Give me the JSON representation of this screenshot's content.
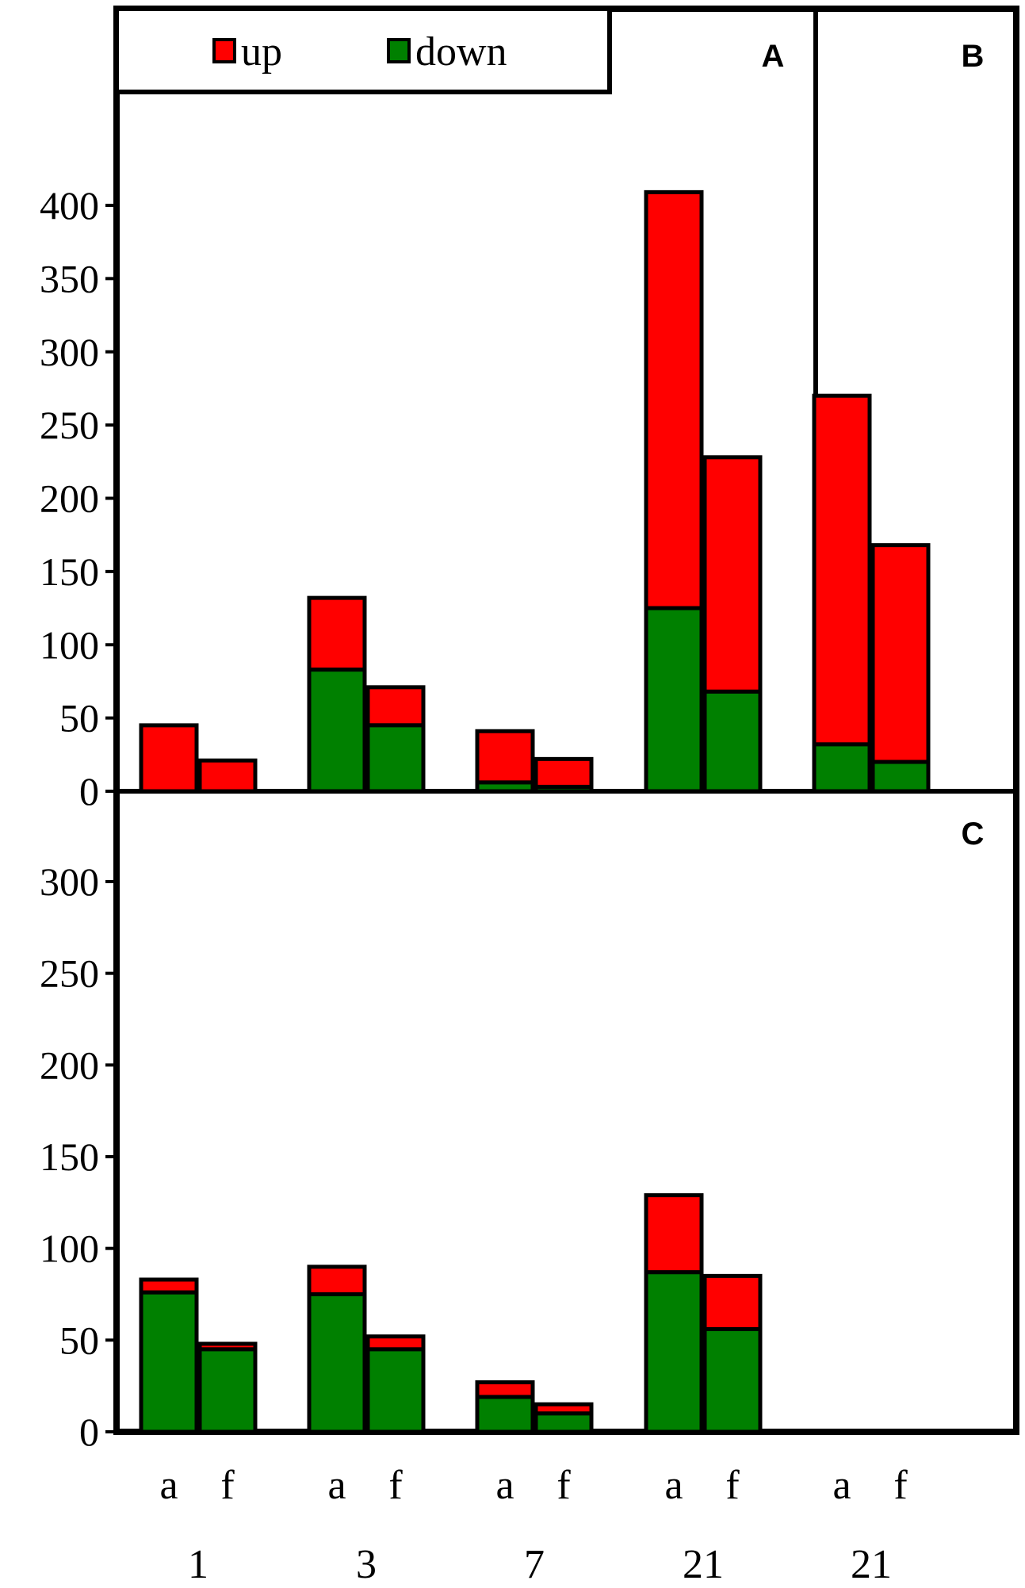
{
  "chart_data": {
    "type": "bar",
    "stacked": true,
    "colors": {
      "up": "#ff0000",
      "down": "#008000",
      "stroke": "#000000"
    },
    "legend": [
      {
        "key": "up",
        "label": "up"
      },
      {
        "key": "down",
        "label": "down"
      }
    ],
    "groups": [
      {
        "label": "1",
        "bars": [
          "a",
          "f"
        ]
      },
      {
        "label": "3",
        "bars": [
          "a",
          "f"
        ]
      },
      {
        "label": "7",
        "bars": [
          "a",
          "f"
        ]
      },
      {
        "label": "21",
        "bars": [
          "a",
          "f"
        ]
      },
      {
        "label": "21",
        "bars": [
          "a",
          "f"
        ]
      }
    ],
    "panels": [
      {
        "label": "A",
        "ylim": [
          0,
          400
        ],
        "yticks": [
          "0",
          "50",
          "100",
          "150",
          "200",
          "250",
          "300",
          "350",
          "400"
        ],
        "bars": [
          {
            "group": 0,
            "bar": "a",
            "down": 0,
            "up": 45
          },
          {
            "group": 0,
            "bar": "f",
            "down": 0,
            "up": 21
          },
          {
            "group": 1,
            "bar": "a",
            "down": 83,
            "up": 49
          },
          {
            "group": 1,
            "bar": "f",
            "down": 45,
            "up": 26
          },
          {
            "group": 2,
            "bar": "a",
            "down": 6,
            "up": 35
          },
          {
            "group": 2,
            "bar": "f",
            "down": 3,
            "up": 19
          },
          {
            "group": 3,
            "bar": "a",
            "down": 125,
            "up": 284
          },
          {
            "group": 3,
            "bar": "f",
            "down": 68,
            "up": 160
          }
        ]
      },
      {
        "label": "B",
        "bars": [
          {
            "group": 4,
            "bar": "a",
            "down": 32,
            "up": 238
          },
          {
            "group": 4,
            "bar": "f",
            "down": 20,
            "up": 148
          }
        ]
      },
      {
        "label": "C",
        "ylim": [
          0,
          300
        ],
        "yticks": [
          "0",
          "50",
          "100",
          "150",
          "200",
          "250",
          "300"
        ],
        "bars": [
          {
            "group": 0,
            "bar": "a",
            "down": 76,
            "up": 7
          },
          {
            "group": 0,
            "bar": "f",
            "down": 45,
            "up": 3
          },
          {
            "group": 1,
            "bar": "a",
            "down": 75,
            "up": 15
          },
          {
            "group": 1,
            "bar": "f",
            "down": 45,
            "up": 7
          },
          {
            "group": 2,
            "bar": "a",
            "down": 19,
            "up": 8
          },
          {
            "group": 2,
            "bar": "f",
            "down": 10,
            "up": 5
          },
          {
            "group": 3,
            "bar": "a",
            "down": 87,
            "up": 42
          },
          {
            "group": 3,
            "bar": "f",
            "down": 56,
            "up": 29
          }
        ]
      }
    ]
  }
}
